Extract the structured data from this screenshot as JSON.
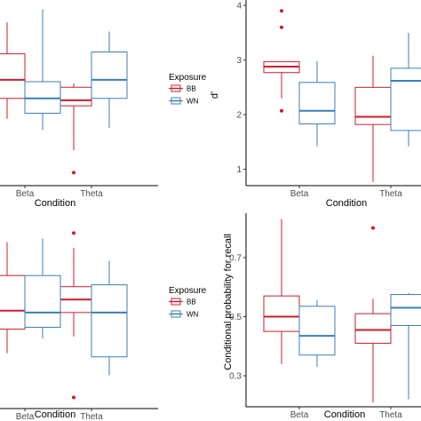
{
  "colors": {
    "BB": "#d01c2a",
    "WN": "#3a7fb8"
  },
  "chart_data": [
    {
      "panel": "top-left",
      "type": "boxplot",
      "xlabel": "Condition",
      "ylabel": "",
      "categories": [
        "Beta",
        "Theta"
      ],
      "ylim": [
        0,
        1
      ],
      "y_ticks": [],
      "legend": {
        "title": "Exposure",
        "entries": [
          "BB",
          "WN"
        ],
        "placement": "right"
      },
      "series": [
        {
          "name": "BB",
          "boxes": [
            {
              "category": "Beta",
              "whisker_low": 0.36,
              "q1": 0.47,
              "median": 0.57,
              "q3": 0.71,
              "whisker_high": 0.88,
              "outliers": []
            },
            {
              "category": "Theta",
              "whisker_low": 0.19,
              "q1": 0.43,
              "median": 0.46,
              "q3": 0.53,
              "whisker_high": 0.55,
              "outliers": [
                0.07
              ]
            }
          ]
        },
        {
          "name": "WN",
          "boxes": [
            {
              "category": "Beta",
              "whisker_low": 0.3,
              "q1": 0.39,
              "median": 0.47,
              "q3": 0.56,
              "whisker_high": 0.95,
              "outliers": []
            },
            {
              "category": "Theta",
              "whisker_low": 0.31,
              "q1": 0.47,
              "median": 0.57,
              "q3": 0.72,
              "whisker_high": 0.83,
              "outliers": []
            }
          ]
        }
      ]
    },
    {
      "panel": "top-right",
      "type": "boxplot",
      "xlabel": "Condition",
      "ylabel": "d'",
      "categories": [
        "Beta",
        "Theta"
      ],
      "ylim": [
        0.7,
        4.1
      ],
      "y_ticks": [
        1,
        2,
        3,
        4
      ],
      "legend": null,
      "series": [
        {
          "name": "BB",
          "boxes": [
            {
              "category": "Beta",
              "whisker_low": 2.3,
              "q1": 2.77,
              "median": 2.88,
              "q3": 2.97,
              "whisker_high": 2.97,
              "outliers": [
                3.9,
                3.6,
                2.07
              ]
            },
            {
              "category": "Theta",
              "whisker_low": 0.77,
              "q1": 1.82,
              "median": 1.96,
              "q3": 2.5,
              "whisker_high": 3.08,
              "outliers": []
            }
          ]
        },
        {
          "name": "WN",
          "boxes": [
            {
              "category": "Beta",
              "whisker_low": 1.42,
              "q1": 1.83,
              "median": 2.07,
              "q3": 2.59,
              "whisker_high": 2.98,
              "outliers": []
            },
            {
              "category": "Theta",
              "whisker_low": 1.42,
              "q1": 1.71,
              "median": 2.62,
              "q3": 2.85,
              "whisker_high": 3.5,
              "outliers": []
            }
          ]
        }
      ]
    },
    {
      "panel": "bottom-left",
      "type": "boxplot",
      "xlabel": "Condition",
      "ylabel": "",
      "categories": [
        "Beta",
        "Theta"
      ],
      "ylim": [
        0,
        1
      ],
      "y_ticks": [],
      "legend": {
        "title": "Exposure",
        "entries": [
          "BB",
          "WN"
        ],
        "placement": "right"
      },
      "series": [
        {
          "name": "BB",
          "boxes": [
            {
              "category": "Beta",
              "whisker_low": 0.3,
              "q1": 0.43,
              "median": 0.53,
              "q3": 0.72,
              "whisker_high": 0.9,
              "outliers": []
            },
            {
              "category": "Theta",
              "whisker_low": 0.39,
              "q1": 0.52,
              "median": 0.59,
              "q3": 0.66,
              "whisker_high": 0.87,
              "outliers": [
                0.95,
                0.06
              ]
            }
          ]
        },
        {
          "name": "WN",
          "boxes": [
            {
              "category": "Beta",
              "whisker_low": 0.38,
              "q1": 0.44,
              "median": 0.52,
              "q3": 0.72,
              "whisker_high": 0.92,
              "outliers": []
            },
            {
              "category": "Theta",
              "whisker_low": 0.18,
              "q1": 0.28,
              "median": 0.52,
              "q3": 0.67,
              "whisker_high": 0.8,
              "outliers": []
            }
          ]
        }
      ]
    },
    {
      "panel": "bottom-right",
      "type": "boxplot",
      "xlabel": "Condition",
      "ylabel": "Conditional probability for recall",
      "categories": [
        "Beta",
        "Theta"
      ],
      "ylim": [
        0.195,
        0.85
      ],
      "y_ticks": [
        0.3,
        0.5,
        0.7
      ],
      "y_tick_labels": [
        "0.3",
        "0.5",
        "0.7"
      ],
      "legend": null,
      "series": [
        {
          "name": "BB",
          "boxes": [
            {
              "category": "Beta",
              "whisker_low": 0.34,
              "q1": 0.45,
              "median": 0.5,
              "q3": 0.57,
              "whisker_high": 0.83,
              "outliers": []
            },
            {
              "category": "Theta",
              "whisker_low": 0.21,
              "q1": 0.41,
              "median": 0.455,
              "q3": 0.51,
              "whisker_high": 0.56,
              "outliers": [
                0.8
              ]
            }
          ]
        },
        {
          "name": "WN",
          "boxes": [
            {
              "category": "Beta",
              "whisker_low": 0.33,
              "q1": 0.37,
              "median": 0.435,
              "q3": 0.535,
              "whisker_high": 0.555,
              "outliers": []
            },
            {
              "category": "Theta",
              "whisker_low": 0.22,
              "q1": 0.47,
              "median": 0.53,
              "q3": 0.575,
              "whisker_high": 0.58,
              "outliers": []
            }
          ]
        }
      ]
    }
  ]
}
